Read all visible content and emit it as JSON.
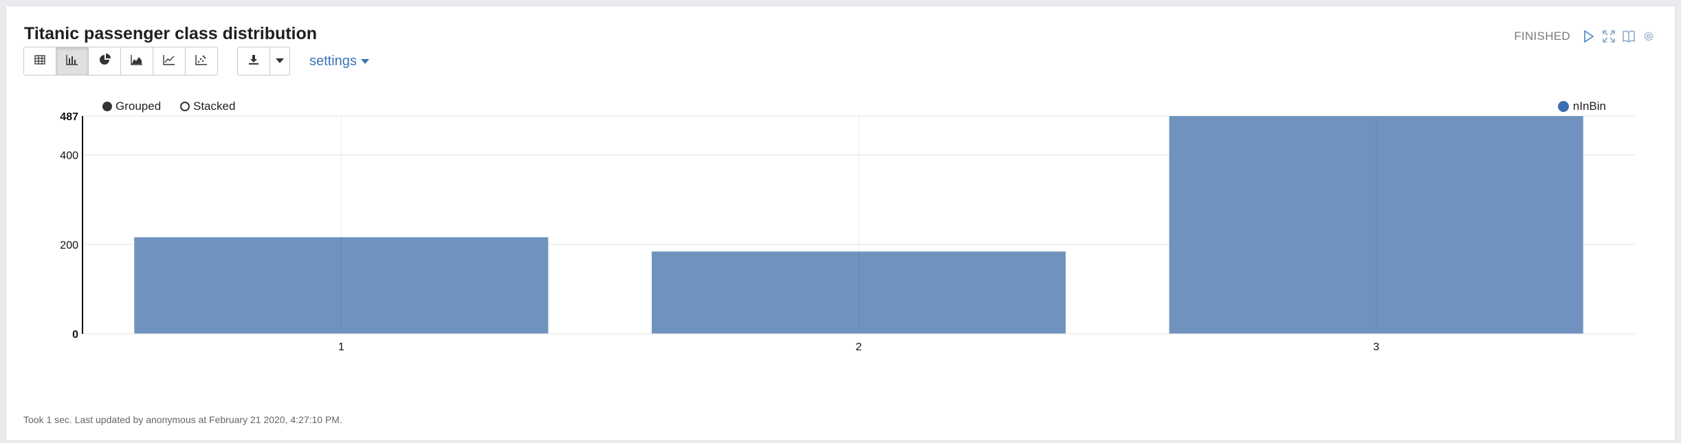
{
  "paragraph": {
    "title": "Titanic passenger class distribution",
    "status": "FINISHED",
    "footer": "Took 1 sec. Last updated by anonymous at February 21 2020, 4:27:10 PM."
  },
  "toolbar": {
    "view_buttons": [
      {
        "name": "table-view-button",
        "icon": "table-icon",
        "active": false
      },
      {
        "name": "bar-chart-button",
        "icon": "bar-chart-icon",
        "active": true
      },
      {
        "name": "pie-chart-button",
        "icon": "pie-chart-icon",
        "active": false
      },
      {
        "name": "area-chart-button",
        "icon": "area-chart-icon",
        "active": false
      },
      {
        "name": "line-chart-button",
        "icon": "line-chart-icon",
        "active": false
      },
      {
        "name": "scatter-chart-button",
        "icon": "scatter-chart-icon",
        "active": false
      }
    ],
    "settings_label": "settings"
  },
  "chart_options": {
    "grouped_label": "Grouped",
    "stacked_label": "Stacked",
    "selected": "Grouped"
  },
  "colors": {
    "bar": "#6f93be",
    "legend": "#3d6db1",
    "accent": "#3a73b8"
  },
  "chart_data": {
    "type": "bar",
    "categories": [
      "1",
      "2",
      "3"
    ],
    "series": [
      {
        "name": "nInBin",
        "values": [
          216,
          184,
          487
        ]
      }
    ],
    "ylim": [
      0,
      487
    ],
    "yticks": [
      0,
      200,
      400,
      487
    ],
    "legend_position": "top-right",
    "grid": true
  }
}
